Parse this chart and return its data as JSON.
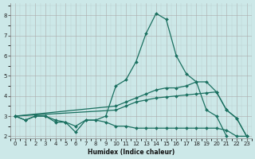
{
  "xlabel": "Humidex (Indice chaleur)",
  "bg_color": "#cce8e8",
  "line_color": "#1a7060",
  "grid_major_color": "#aaaaaa",
  "grid_minor_color": "#bbcccc",
  "ylim": [
    1.9,
    8.6
  ],
  "xlim": [
    -0.5,
    23.5
  ],
  "line_peak_x": [
    0,
    1,
    2,
    3,
    4,
    5,
    6,
    7,
    8,
    9,
    10,
    11,
    12,
    13,
    14,
    15,
    16,
    17,
    18,
    19,
    20,
    21
  ],
  "line_peak_y": [
    3.0,
    2.8,
    3.0,
    3.0,
    2.8,
    2.7,
    2.5,
    2.8,
    2.8,
    3.0,
    4.5,
    4.8,
    5.7,
    7.1,
    8.1,
    7.8,
    6.0,
    5.1,
    4.7,
    3.3,
    3.0,
    2.0
  ],
  "line_upper_x": [
    0,
    10,
    11,
    12,
    13,
    14,
    15,
    16,
    17,
    18,
    19,
    20,
    21,
    22,
    23
  ],
  "line_upper_y": [
    3.0,
    3.5,
    3.7,
    3.9,
    4.1,
    4.3,
    4.4,
    4.4,
    4.5,
    4.7,
    4.7,
    4.2,
    3.3,
    2.9,
    2.0
  ],
  "line_mid_x": [
    0,
    10,
    11,
    12,
    13,
    14,
    15,
    16,
    17,
    18,
    19,
    20,
    21,
    22,
    23
  ],
  "line_mid_y": [
    3.0,
    3.3,
    3.5,
    3.7,
    3.8,
    3.9,
    3.95,
    4.0,
    4.05,
    4.1,
    4.15,
    4.2,
    3.3,
    2.9,
    2.0
  ],
  "line_bot_x": [
    0,
    1,
    2,
    3,
    4,
    5,
    6,
    7,
    8,
    9,
    10,
    11,
    12,
    13,
    14,
    15,
    16,
    17,
    18,
    19,
    20,
    21,
    22,
    23
  ],
  "line_bot_y": [
    3.0,
    2.8,
    3.0,
    3.0,
    2.7,
    2.7,
    2.2,
    2.8,
    2.8,
    2.7,
    2.5,
    2.5,
    2.4,
    2.4,
    2.4,
    2.4,
    2.4,
    2.4,
    2.4,
    2.4,
    2.4,
    2.3,
    2.0,
    2.0
  ]
}
